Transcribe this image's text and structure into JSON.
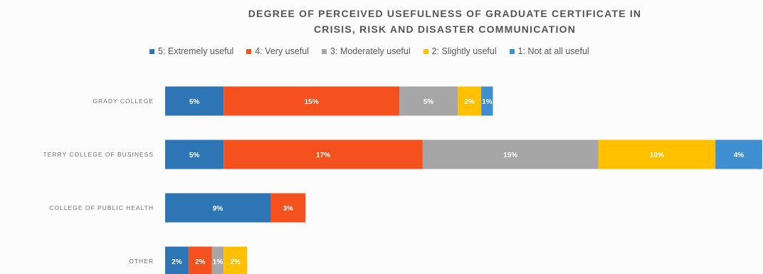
{
  "colors": {
    "s5": "#2e75b6",
    "s4": "#f4511e",
    "s3": "#a6a6a6",
    "s2": "#ffc000",
    "s1": "#3e8ed0",
    "title": "#555555",
    "label": "#707070"
  },
  "chart_data": {
    "type": "bar",
    "orientation": "horizontal",
    "stacked": true,
    "title": "DEGREE OF PERCEIVED USEFULNESS OF GRADUATE CERTIFICATE IN CRISIS, RISK AND DISASTER COMMUNICATION",
    "title_lines": [
      "DEGREE OF PERCEIVED USEFULNESS OF GRADUATE CERTIFICATE IN",
      "CRISIS, RISK AND DISASTER COMMUNICATION"
    ],
    "categories": [
      "GRADY COLLEGE",
      "TERRY COLLEGE OF BUSINESS",
      "COLLEGE OF PUBLIC HEALTH",
      "OTHER"
    ],
    "series": [
      {
        "name": "5: Extremely useful",
        "values": [
          5,
          5,
          9,
          2
        ]
      },
      {
        "name": "4: Very useful",
        "values": [
          15,
          17,
          3,
          2
        ]
      },
      {
        "name": "3: Moderately useful",
        "values": [
          5,
          15,
          0,
          1
        ]
      },
      {
        "name": "2: Slightly useful",
        "values": [
          2,
          10,
          0,
          2
        ]
      },
      {
        "name": "1: Not at all useful",
        "values": [
          1,
          4,
          0,
          0
        ]
      }
    ],
    "legend_position": "top",
    "grid": false,
    "value_labels": true,
    "label_suffix": "%"
  }
}
